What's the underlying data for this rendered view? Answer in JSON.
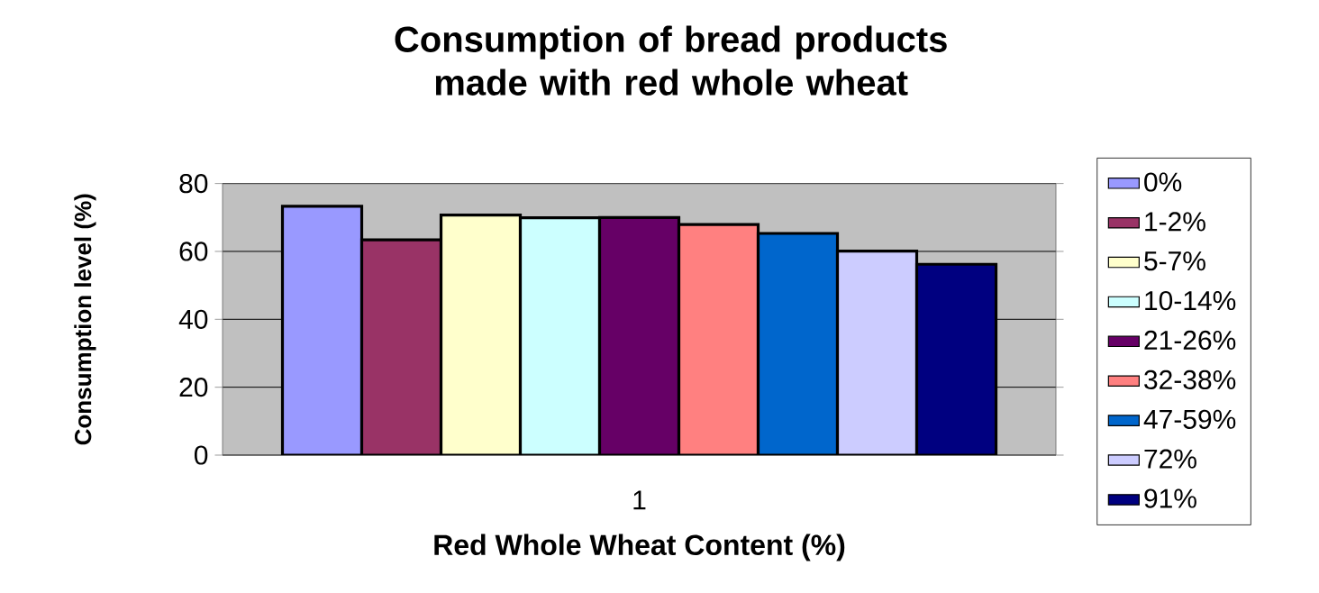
{
  "chart_data": {
    "type": "bar",
    "title": "Consumption of bread products made with red whole wheat",
    "xlabel": "Red Whole Wheat Content (%)",
    "ylabel": "Consumption level (%)",
    "categories": [
      "1"
    ],
    "series": [
      {
        "name": "0%",
        "color": "#9999ff",
        "values": [
          73.3
        ]
      },
      {
        "name": "1-2%",
        "color": "#993366",
        "values": [
          63.4
        ]
      },
      {
        "name": "5-7%",
        "color": "#ffffcc",
        "values": [
          70.7
        ]
      },
      {
        "name": "10-14%",
        "color": "#ccffff",
        "values": [
          69.9
        ]
      },
      {
        "name": "21-26%",
        "color": "#660066",
        "values": [
          70.0
        ]
      },
      {
        "name": "32-38%",
        "color": "#ff8080",
        "values": [
          67.9
        ]
      },
      {
        "name": "47-59%",
        "color": "#0066cc",
        "values": [
          65.3
        ]
      },
      {
        "name": "72%",
        "color": "#ccccff",
        "values": [
          60.1
        ]
      },
      {
        "name": "91%",
        "color": "#000080",
        "values": [
          56.2
        ]
      }
    ],
    "ylim": [
      0,
      80
    ],
    "yticks": [
      0,
      20,
      40,
      60,
      80
    ],
    "grid": "y",
    "legend": "right"
  }
}
